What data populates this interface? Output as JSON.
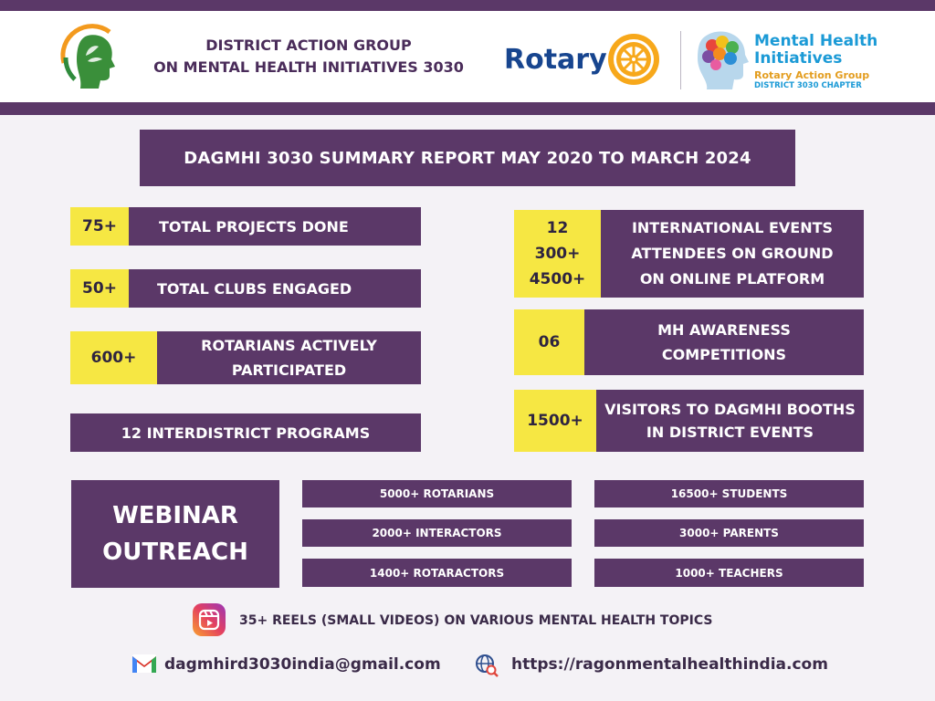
{
  "header": {
    "title_line1": "DISTRICT ACTION GROUP",
    "title_line2": "ON MENTAL HEALTH INITIATIVES 3030",
    "rotary_word": "Rotary",
    "mhi_title_line1": "Mental Health",
    "mhi_title_line2": "Initiatives",
    "mhi_sub": "Rotary Action Group",
    "mhi_sub2": "DISTRICT 3030 CHAPTER"
  },
  "report_title": "DAGMHI 3030 SUMMARY REPORT MAY 2020 TO MARCH 2024",
  "left_stats": [
    {
      "value": "75+",
      "label": "TOTAL PROJECTS DONE"
    },
    {
      "value": "50+",
      "label": "TOTAL CLUBS ENGAGED"
    },
    {
      "value": "600+",
      "label_line1": "ROTARIANS ACTIVELY",
      "label_line2": "PARTICIPATED"
    }
  ],
  "interdistrict": "12 INTERDISTRICT PROGRAMS",
  "right_stats": {
    "events": {
      "values": [
        "12",
        "300+",
        "4500+"
      ],
      "labels": [
        "INTERNATIONAL EVENTS",
        "ATTENDEES ON GROUND",
        "ON ONLINE PLATFORM"
      ]
    },
    "competitions": {
      "value": "06",
      "label_line1": "MH AWARENESS",
      "label_line2": "COMPETITIONS"
    },
    "visitors": {
      "value": "1500+",
      "label_line1": "VISITORS TO DAGMHI BOOTHS",
      "label_line2": "IN DISTRICT EVENTS"
    }
  },
  "webinar": {
    "title_line1": "WEBINAR",
    "title_line2": "OUTREACH",
    "col1": [
      "5000+ ROTARIANS",
      "2000+ INTERACTORS",
      "1400+ ROTARACTORS"
    ],
    "col2": [
      "16500+ STUDENTS",
      "3000+ PARENTS",
      "1000+ TEACHERS"
    ]
  },
  "reels": "35+ REELS (SMALL VIDEOS) ON VARIOUS MENTAL HEALTH TOPICS",
  "contact": {
    "email": "dagmhird3030india@gmail.com",
    "url": "https://ragonmentalhealthindia.com"
  },
  "colors": {
    "purple": "#5b3868",
    "yellow": "#f6e743",
    "background": "#f4f2f6"
  }
}
